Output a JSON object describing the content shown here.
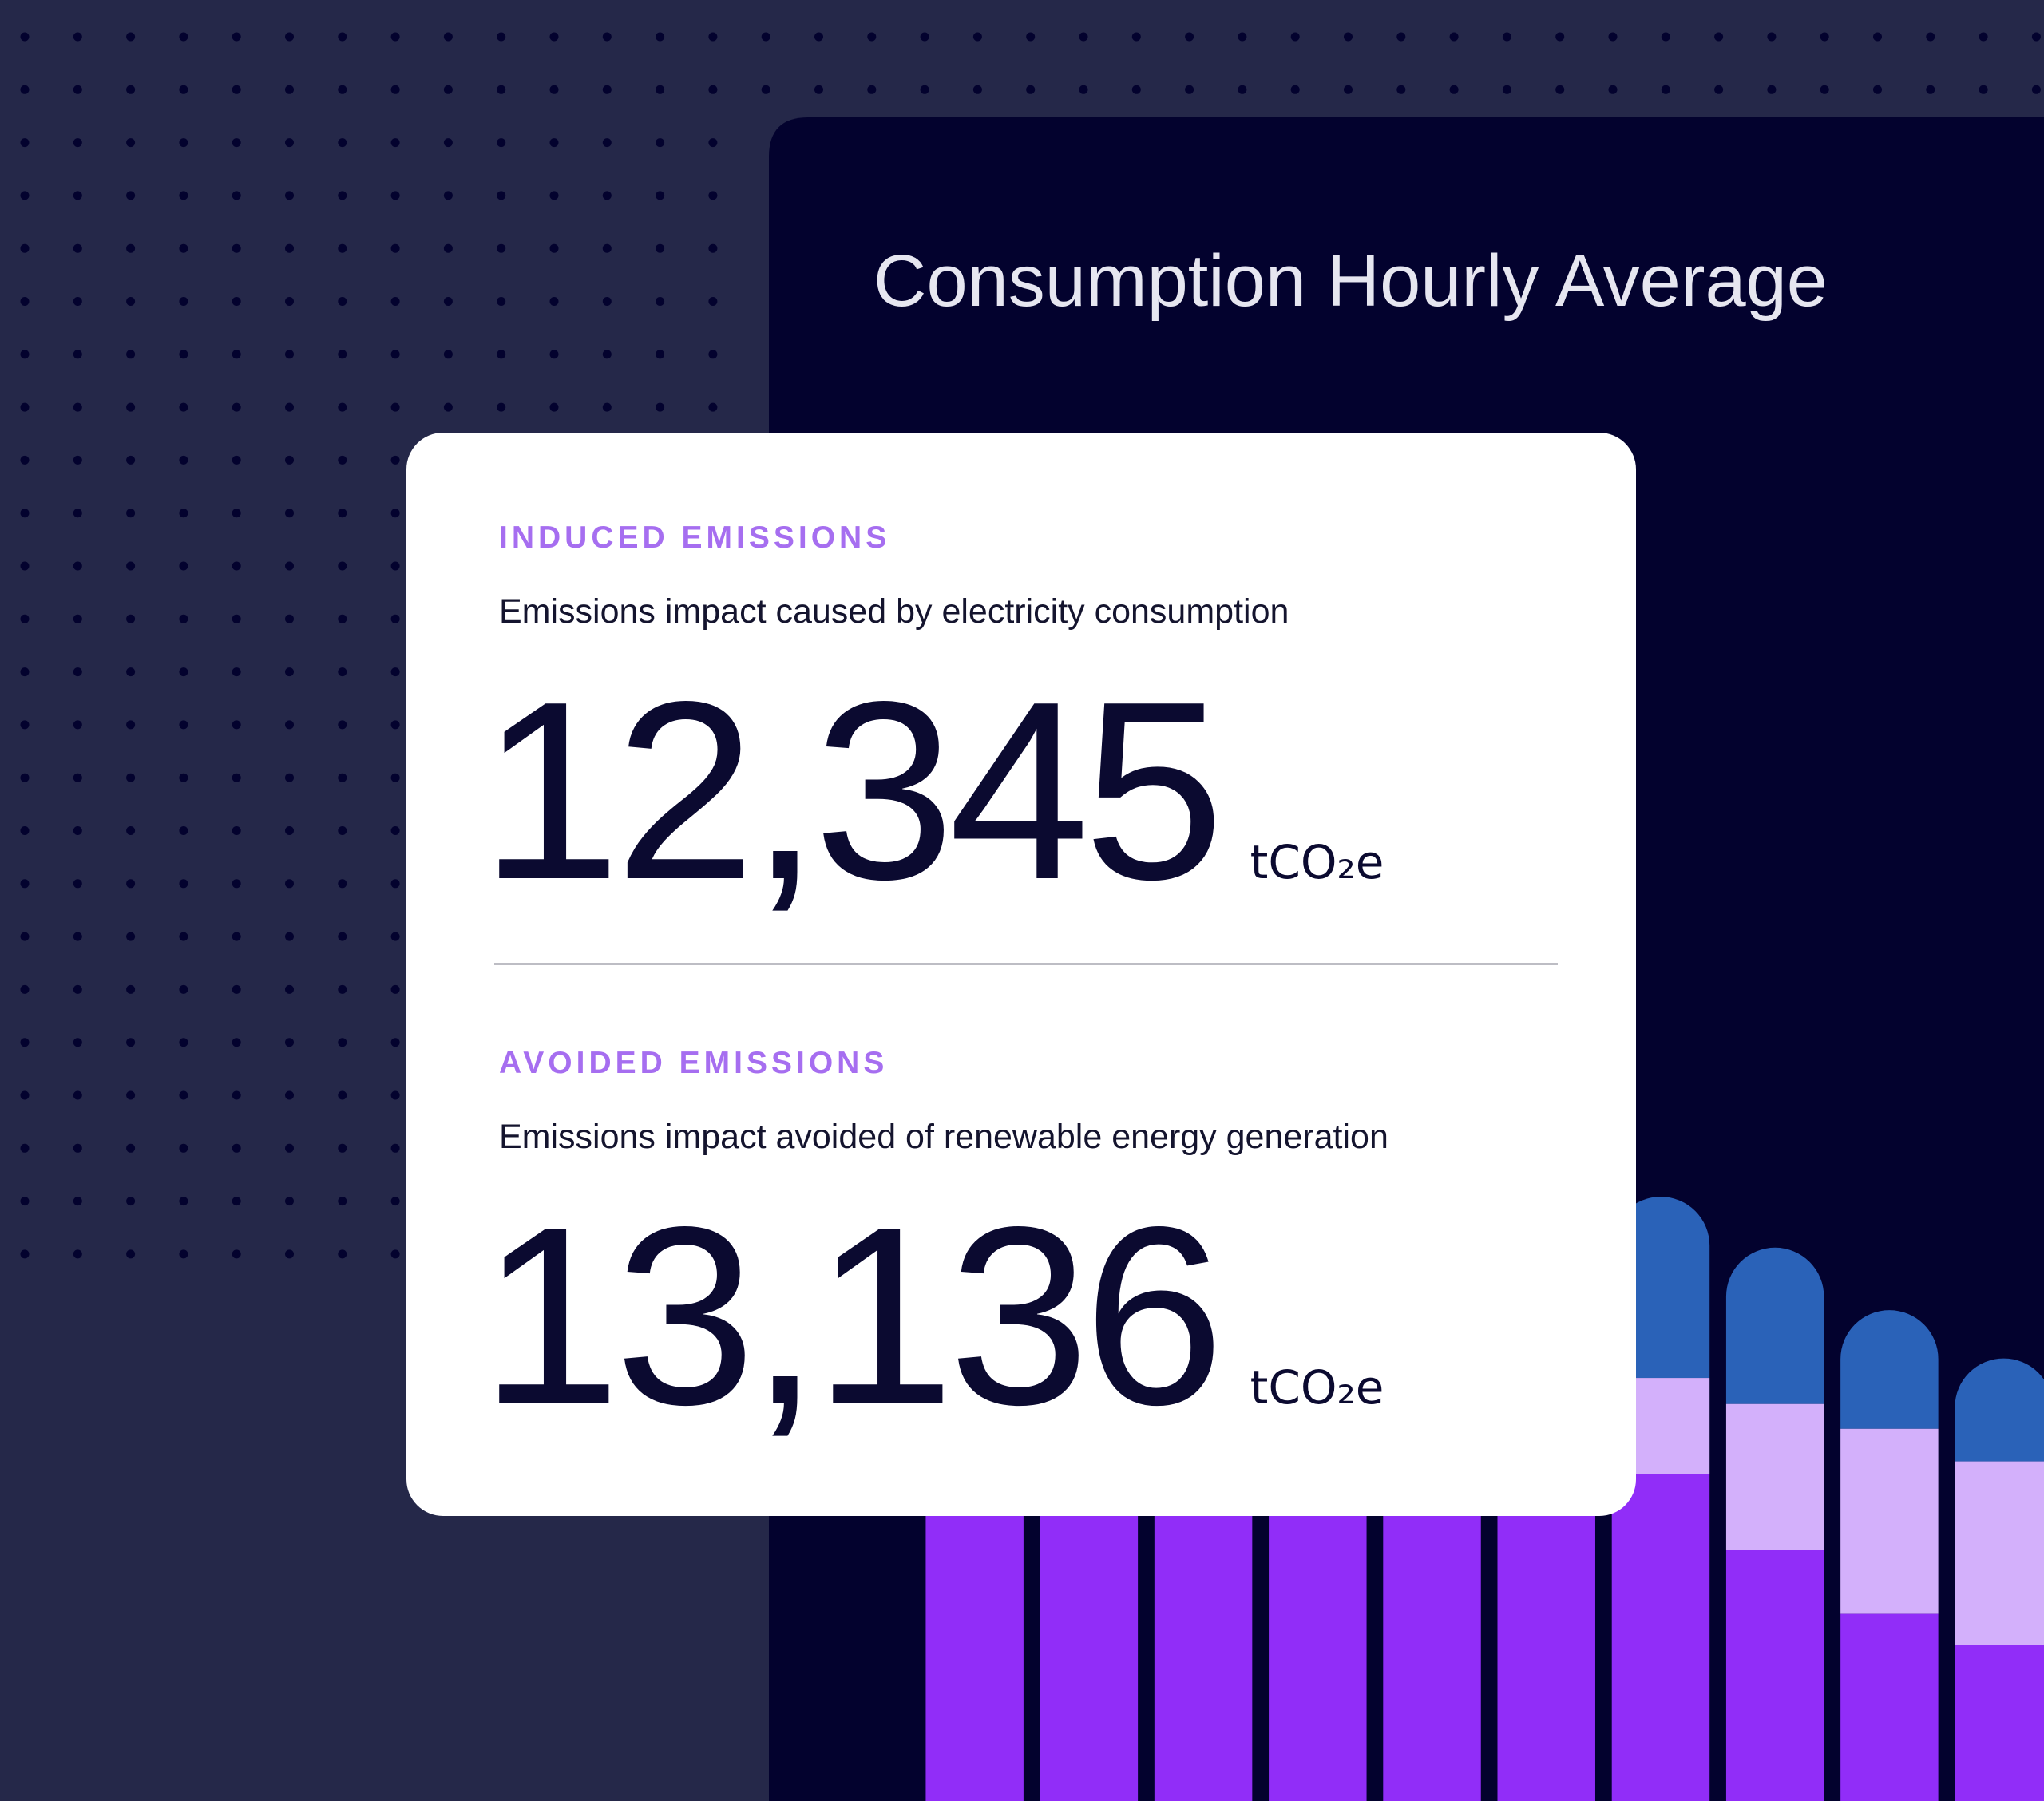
{
  "panel": {
    "title": "Consumption Hourly Average"
  },
  "card": {
    "sections": [
      {
        "label": "INDUCED EMISSIONS",
        "description": "Emissions impact caused by electricity consumption",
        "value": "12,345",
        "unit": "tCO₂e"
      },
      {
        "label": "AVOIDED EMISSIONS",
        "description": "Emissions impact avoided of renewable energy generation",
        "value": "13,136",
        "unit": "tCO₂e"
      }
    ]
  }
}
